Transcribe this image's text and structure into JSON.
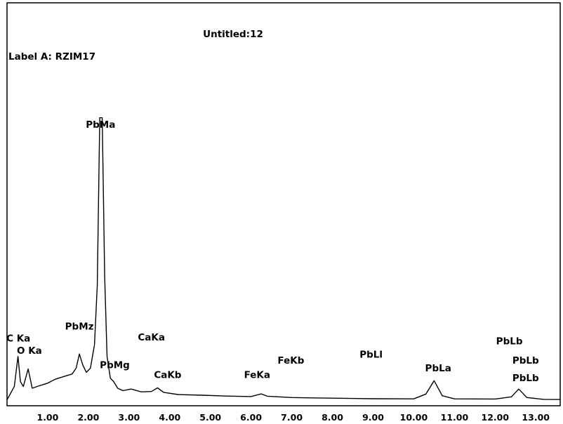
{
  "chart_data": {
    "type": "line",
    "title": "Untitled:12",
    "subtitle": "Label A: RZIM17",
    "xlabel": "",
    "ylabel": "",
    "xlim": [
      0,
      13.6
    ],
    "ylim": [
      0,
      1850
    ],
    "x_ticks": [
      "1.00",
      "2.00",
      "3.00",
      "4.00",
      "5.00",
      "6.00",
      "7.00",
      "8.00",
      "9.00",
      "10.00",
      "11.00",
      "12.00",
      "13.00"
    ],
    "grid": false,
    "series": [
      {
        "values": [
          {
            "x": 0.0,
            "y": 10
          },
          {
            "x": 0.18,
            "y": 90
          },
          {
            "x": 0.27,
            "y": 270
          },
          {
            "x": 0.33,
            "y": 120
          },
          {
            "x": 0.4,
            "y": 90
          },
          {
            "x": 0.52,
            "y": 195
          },
          {
            "x": 0.62,
            "y": 80
          },
          {
            "x": 0.8,
            "y": 95
          },
          {
            "x": 1.0,
            "y": 110
          },
          {
            "x": 1.2,
            "y": 135
          },
          {
            "x": 1.4,
            "y": 150
          },
          {
            "x": 1.6,
            "y": 165
          },
          {
            "x": 1.7,
            "y": 200
          },
          {
            "x": 1.78,
            "y": 285
          },
          {
            "x": 1.86,
            "y": 220
          },
          {
            "x": 1.95,
            "y": 175
          },
          {
            "x": 2.05,
            "y": 200
          },
          {
            "x": 2.15,
            "y": 340
          },
          {
            "x": 2.22,
            "y": 700
          },
          {
            "x": 2.28,
            "y": 1700
          },
          {
            "x": 2.34,
            "y": 1700
          },
          {
            "x": 2.4,
            "y": 750
          },
          {
            "x": 2.46,
            "y": 270
          },
          {
            "x": 2.54,
            "y": 140
          },
          {
            "x": 2.62,
            "y": 120
          },
          {
            "x": 2.72,
            "y": 80
          },
          {
            "x": 2.85,
            "y": 65
          },
          {
            "x": 3.05,
            "y": 75
          },
          {
            "x": 3.3,
            "y": 58
          },
          {
            "x": 3.55,
            "y": 60
          },
          {
            "x": 3.7,
            "y": 82
          },
          {
            "x": 3.85,
            "y": 55
          },
          {
            "x": 4.2,
            "y": 42
          },
          {
            "x": 4.8,
            "y": 38
          },
          {
            "x": 5.4,
            "y": 33
          },
          {
            "x": 6.0,
            "y": 30
          },
          {
            "x": 6.25,
            "y": 46
          },
          {
            "x": 6.4,
            "y": 32
          },
          {
            "x": 7.0,
            "y": 24
          },
          {
            "x": 7.5,
            "y": 22
          },
          {
            "x": 8.0,
            "y": 20
          },
          {
            "x": 9.0,
            "y": 17
          },
          {
            "x": 10.0,
            "y": 16
          },
          {
            "x": 10.3,
            "y": 45
          },
          {
            "x": 10.5,
            "y": 125
          },
          {
            "x": 10.7,
            "y": 35
          },
          {
            "x": 11.0,
            "y": 16
          },
          {
            "x": 12.0,
            "y": 15
          },
          {
            "x": 12.4,
            "y": 28
          },
          {
            "x": 12.58,
            "y": 75
          },
          {
            "x": 12.78,
            "y": 24
          },
          {
            "x": 13.2,
            "y": 13
          },
          {
            "x": 13.6,
            "y": 12
          }
        ]
      }
    ],
    "annotations": [
      {
        "text": "PbMa",
        "x": 2.3,
        "y": 1640
      },
      {
        "text": "C Ka",
        "x": 0.28,
        "y": 360
      },
      {
        "text": "O Ka",
        "x": 0.55,
        "y": 285
      },
      {
        "text": "PbMz",
        "x": 1.78,
        "y": 430
      },
      {
        "text": "PbMg",
        "x": 2.65,
        "y": 200
      },
      {
        "text": "CaKa",
        "x": 3.55,
        "y": 365
      },
      {
        "text": "CaKb",
        "x": 3.95,
        "y": 140
      },
      {
        "text": "FeKa",
        "x": 6.15,
        "y": 140
      },
      {
        "text": "FeKb",
        "x": 6.98,
        "y": 228
      },
      {
        "text": "PbLl",
        "x": 8.95,
        "y": 262
      },
      {
        "text": "PbLa",
        "x": 10.6,
        "y": 180
      },
      {
        "text": "PbLb",
        "x": 12.35,
        "y": 342
      },
      {
        "text": "PbLb",
        "x": 12.75,
        "y": 228
      },
      {
        "text": "PbLb",
        "x": 12.75,
        "y": 122
      }
    ]
  }
}
